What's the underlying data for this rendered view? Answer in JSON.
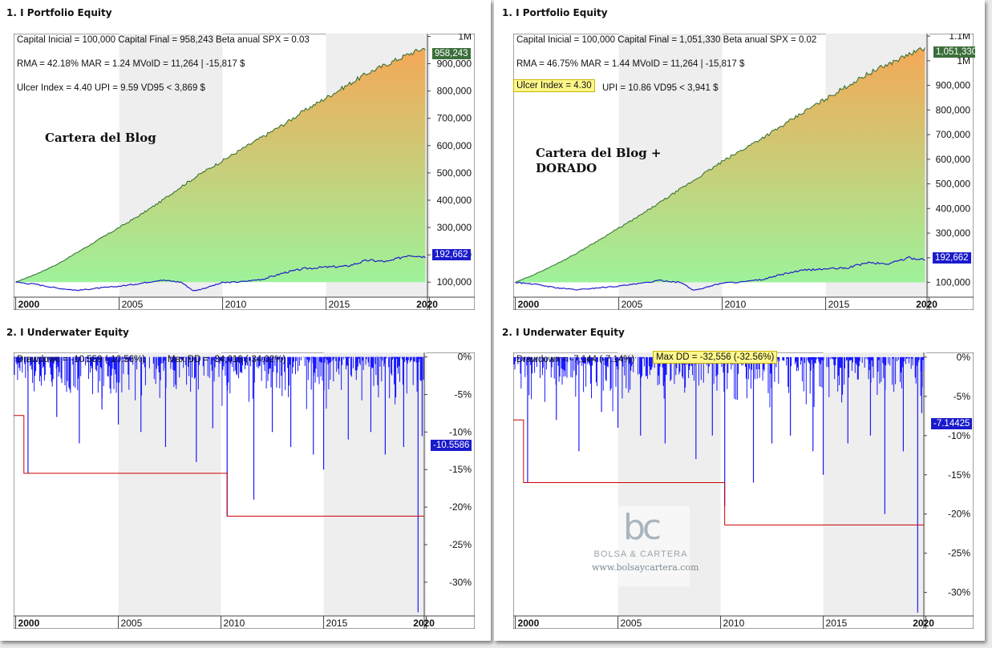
{
  "panels": {
    "left": {
      "equity": {
        "title": "1. I Portfolio Equity",
        "stats": {
          "line1": "Capital Inicial = 100,000  Capital Final = 958,243  Beta anual SPX = 0.03",
          "line2": "RMA = 42.18%   MAR = 1.24   MVoID = 11,264 | -15,817 $",
          "line3": "Ulcer Index = 4.40   UPI = 9.59   VD95 < 3,869 $"
        },
        "label": [
          "Cartera del Blog"
        ],
        "last_equity_tag": "958,243",
        "last_benchmark_tag": "192,662"
      },
      "underwater": {
        "title": "2. I Underwater Equity",
        "drawdown_text": "Drawdown = -10,559 (-10.56%)",
        "maxdd_text": "Max DD = -34,016 (-34.02%)",
        "last_tag": "-10.5586"
      }
    },
    "right": {
      "equity": {
        "title": "1. I Portfolio Equity",
        "stats": {
          "line1": "Capital Inicial = 100,000  Capital Final = 1,051,330  Beta anual SPX = 0.02",
          "line2": "RMA = 46.75%   MAR = 1.44   MVoID = 11,264 | -15,817 $",
          "line3a": "Ulcer Index = 4.30",
          "line3b": "UPI = 10.86   VD95 < 3,941 $"
        },
        "label": [
          "Cartera del Blog +",
          "DORADO"
        ],
        "last_equity_tag": "1,051,330",
        "last_benchmark_tag": "192,662"
      },
      "underwater": {
        "title": "2. I Underwater Equity",
        "drawdown_text": "Drawdown = -7,144 (-7.14%)",
        "maxdd_text": "Max DD = -32,556 (-32.56%)",
        "last_tag": "-7.14425"
      }
    }
  },
  "logo": {
    "mark": "bc",
    "name": "BOLSA & CARTERA",
    "url": "www.bolsaycartera.com"
  },
  "colors": {
    "equity_line": "#2e6b2e",
    "benchmark_line": "#1f1fc8",
    "fill_top": "#f4a857",
    "fill_bottom": "#9ef29a",
    "drawdown_line": "#1a1aff",
    "maxdd_line": "#cc0000",
    "equity_tag_bg": "#3b6f3b",
    "benchmark_tag_bg": "#1a1acc"
  },
  "chart_data": [
    {
      "type": "area",
      "panel": "left-equity",
      "x_tick_labels": [
        "2000",
        "2005",
        "2010",
        "2015",
        "2020"
      ],
      "x_ticks": [
        2000,
        2005,
        2010,
        2015,
        2020
      ],
      "y_tick_labels": [
        "1M",
        "900,000",
        "800,000",
        "700,000",
        "600,000",
        "500,000",
        "400,000",
        "300,000",
        "200,000",
        "100,000"
      ],
      "y_ticks": [
        1000000,
        900000,
        800000,
        700000,
        600000,
        500000,
        400000,
        300000,
        200000,
        100000
      ],
      "xlim": [
        1999.9,
        2019.9
      ],
      "ylim": [
        45000,
        1010000
      ],
      "series": [
        {
          "role": "equity",
          "x": [
            2000,
            2001,
            2002,
            2003,
            2004,
            2005,
            2006,
            2007,
            2008,
            2009,
            2010,
            2011,
            2012,
            2013,
            2014,
            2015,
            2016,
            2017,
            2018,
            2019,
            2019.8
          ],
          "values": [
            100000,
            130000,
            165000,
            210000,
            255000,
            300000,
            345000,
            395000,
            450000,
            500000,
            545000,
            590000,
            635000,
            680000,
            730000,
            775000,
            820000,
            865000,
            900000,
            935000,
            958243
          ]
        },
        {
          "role": "benchmark",
          "x": [
            2000,
            2001,
            2002,
            2003,
            2004,
            2005,
            2006,
            2007,
            2008,
            2008.6,
            2009,
            2010,
            2011,
            2012,
            2013,
            2014,
            2015,
            2016,
            2017,
            2018,
            2019,
            2019.8
          ],
          "values": [
            100000,
            92000,
            78000,
            70000,
            78000,
            85000,
            95000,
            108000,
            100000,
            68000,
            75000,
            98000,
            102000,
            112000,
            135000,
            150000,
            155000,
            158000,
            180000,
            175000,
            200000,
            192662
          ]
        }
      ]
    },
    {
      "type": "area",
      "panel": "right-equity",
      "x_tick_labels": [
        "2000",
        "2005",
        "2010",
        "2015",
        "2020"
      ],
      "x_ticks": [
        2000,
        2005,
        2010,
        2015,
        2020
      ],
      "y_tick_labels": [
        "1.1M",
        "1M",
        "900,000",
        "800,000",
        "700,000",
        "600,000",
        "500,000",
        "400,000",
        "300,000",
        "200,000",
        "100,000"
      ],
      "y_ticks": [
        1100000,
        1000000,
        900000,
        800000,
        700000,
        600000,
        500000,
        400000,
        300000,
        200000,
        100000
      ],
      "xlim": [
        1999.9,
        2019.9
      ],
      "ylim": [
        40000,
        1110000
      ],
      "series": [
        {
          "role": "equity",
          "x": [
            2000,
            2001,
            2002,
            2003,
            2004,
            2005,
            2006,
            2007,
            2008,
            2009,
            2010,
            2011,
            2012,
            2013,
            2014,
            2015,
            2016,
            2017,
            2018,
            2019,
            2019.8
          ],
          "values": [
            100000,
            135000,
            175000,
            220000,
            270000,
            320000,
            370000,
            425000,
            480000,
            535000,
            590000,
            640000,
            690000,
            740000,
            795000,
            845000,
            895000,
            945000,
            985000,
            1025000,
            1051330
          ]
        },
        {
          "role": "benchmark",
          "x": [
            2000,
            2001,
            2002,
            2003,
            2004,
            2005,
            2006,
            2007,
            2008,
            2008.6,
            2009,
            2010,
            2011,
            2012,
            2013,
            2014,
            2015,
            2016,
            2017,
            2018,
            2019,
            2019.8
          ],
          "values": [
            100000,
            92000,
            78000,
            70000,
            78000,
            85000,
            95000,
            108000,
            100000,
            68000,
            75000,
            98000,
            102000,
            112000,
            135000,
            150000,
            155000,
            158000,
            180000,
            175000,
            200000,
            192662
          ]
        }
      ]
    },
    {
      "type": "line",
      "panel": "left-underwater",
      "x_tick_labels": [
        "2000",
        "2005",
        "2010",
        "2015",
        "2020"
      ],
      "x_ticks": [
        2000,
        2005,
        2010,
        2015,
        2020
      ],
      "y_tick_labels": [
        "0%",
        "-5%",
        "-10%",
        "-15%",
        "-20%",
        "-25%",
        "-30%"
      ],
      "y_ticks": [
        0,
        -5,
        -10,
        -15,
        -20,
        -25,
        -30
      ],
      "xlim": [
        1999.9,
        2019.9
      ],
      "ylim": [
        -34.5,
        0.6
      ],
      "maxdd_steps": [
        {
          "from": 1999.9,
          "to": 2000.4,
          "value": -7.8
        },
        {
          "from": 2000.4,
          "to": 2010.3,
          "value": -15.5
        },
        {
          "from": 2010.3,
          "to": 2019.9,
          "value": -21.2
        }
      ],
      "spikes": [
        {
          "x": 2000.6,
          "value": -15.5
        },
        {
          "x": 2002.0,
          "value": -8
        },
        {
          "x": 2003.1,
          "value": -11.5
        },
        {
          "x": 2004.2,
          "value": -7
        },
        {
          "x": 2005.0,
          "value": -9
        },
        {
          "x": 2006.1,
          "value": -10
        },
        {
          "x": 2007.3,
          "value": -12
        },
        {
          "x": 2008.8,
          "value": -14
        },
        {
          "x": 2009.6,
          "value": -9.5
        },
        {
          "x": 2010.3,
          "value": -21.2
        },
        {
          "x": 2011.6,
          "value": -19
        },
        {
          "x": 2012.5,
          "value": -10
        },
        {
          "x": 2013.4,
          "value": -12
        },
        {
          "x": 2014.5,
          "value": -13
        },
        {
          "x": 2015.0,
          "value": -15
        },
        {
          "x": 2016.2,
          "value": -11
        },
        {
          "x": 2017.3,
          "value": -10
        },
        {
          "x": 2018.0,
          "value": -13
        },
        {
          "x": 2018.9,
          "value": -12
        },
        {
          "x": 2019.6,
          "value": -34.0
        },
        {
          "x": 2019.8,
          "value": -10.56
        }
      ]
    },
    {
      "type": "line",
      "panel": "right-underwater",
      "x_tick_labels": [
        "2000",
        "2005",
        "2010",
        "2015",
        "2020"
      ],
      "x_ticks": [
        2000,
        2005,
        2010,
        2015,
        2020
      ],
      "y_tick_labels": [
        "0%",
        "-5%",
        "-10%",
        "-15%",
        "-20%",
        "-25%",
        "-30%"
      ],
      "y_ticks": [
        0,
        -5,
        -10,
        -15,
        -20,
        -25,
        -30
      ],
      "xlim": [
        1999.9,
        2019.9
      ],
      "ylim": [
        -33.0,
        0.6
      ],
      "maxdd_steps": [
        {
          "from": 1999.9,
          "to": 2000.4,
          "value": -8.0
        },
        {
          "from": 2000.4,
          "to": 2010.2,
          "value": -16.0
        },
        {
          "from": 2010.2,
          "to": 2019.9,
          "value": -21.4
        }
      ],
      "spikes": [
        {
          "x": 2000.6,
          "value": -16.0
        },
        {
          "x": 2002.0,
          "value": -8
        },
        {
          "x": 2003.1,
          "value": -12
        },
        {
          "x": 2004.2,
          "value": -7
        },
        {
          "x": 2005.0,
          "value": -9
        },
        {
          "x": 2006.1,
          "value": -10
        },
        {
          "x": 2007.3,
          "value": -11
        },
        {
          "x": 2008.8,
          "value": -13
        },
        {
          "x": 2009.6,
          "value": -10
        },
        {
          "x": 2010.2,
          "value": -19
        },
        {
          "x": 2011.6,
          "value": -16
        },
        {
          "x": 2012.5,
          "value": -11
        },
        {
          "x": 2013.4,
          "value": -10
        },
        {
          "x": 2014.5,
          "value": -12
        },
        {
          "x": 2015.0,
          "value": -15
        },
        {
          "x": 2016.2,
          "value": -11
        },
        {
          "x": 2017.3,
          "value": -10
        },
        {
          "x": 2018.0,
          "value": -20
        },
        {
          "x": 2018.9,
          "value": -12
        },
        {
          "x": 2019.6,
          "value": -32.56
        },
        {
          "x": 2019.8,
          "value": -7.14
        }
      ]
    }
  ]
}
